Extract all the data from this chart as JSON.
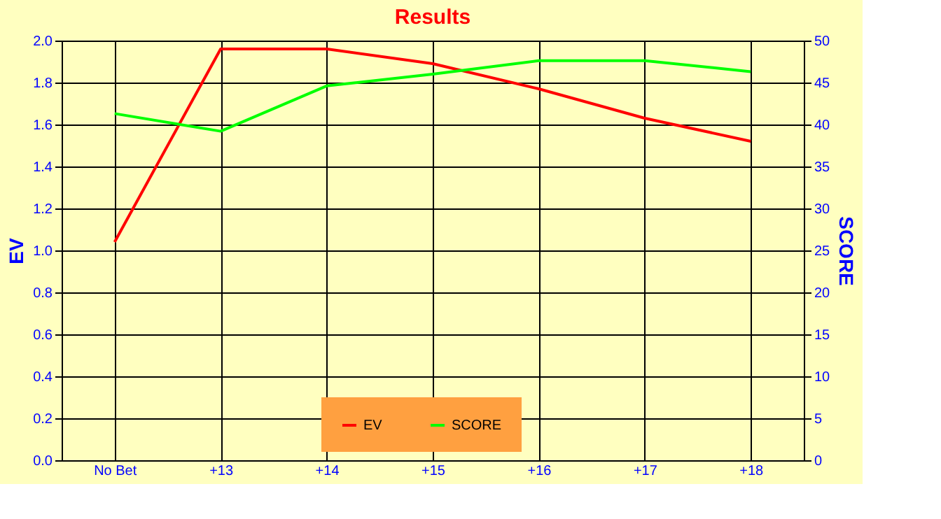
{
  "chart_data": {
    "type": "line",
    "title": "Results",
    "categories": [
      "No Bet",
      "+13",
      "+14",
      "+15",
      "+16",
      "+17",
      "+18"
    ],
    "series": [
      {
        "name": "EV",
        "color": "#ff0000",
        "values": [
          1.04,
          1.96,
          1.96,
          1.89,
          1.77,
          1.63,
          1.52
        ]
      },
      {
        "name": "SCORE",
        "color": "#00ff00",
        "axis": "y2",
        "values": [
          41.3,
          39.2,
          44.6,
          46.0,
          47.6,
          47.6,
          46.3
        ]
      }
    ],
    "ylabel": "EV",
    "y2label": "SCORE",
    "ylim": [
      0,
      2
    ],
    "yticks": [
      {
        "value": 0,
        "label": "0.0"
      },
      0.2,
      0.4,
      0.6,
      0.8,
      {
        "value": 1,
        "label": "1.0"
      },
      1.2,
      1.4,
      1.6,
      1.8,
      {
        "value": 2,
        "label": "2.0"
      }
    ],
    "y2lim": [
      0,
      50
    ],
    "y2ticks": [
      0,
      5,
      10,
      15,
      20,
      25,
      30,
      35,
      40,
      45,
      50
    ],
    "grid": true,
    "legend": "bottom",
    "marker": "none",
    "line_style": "solid"
  }
}
